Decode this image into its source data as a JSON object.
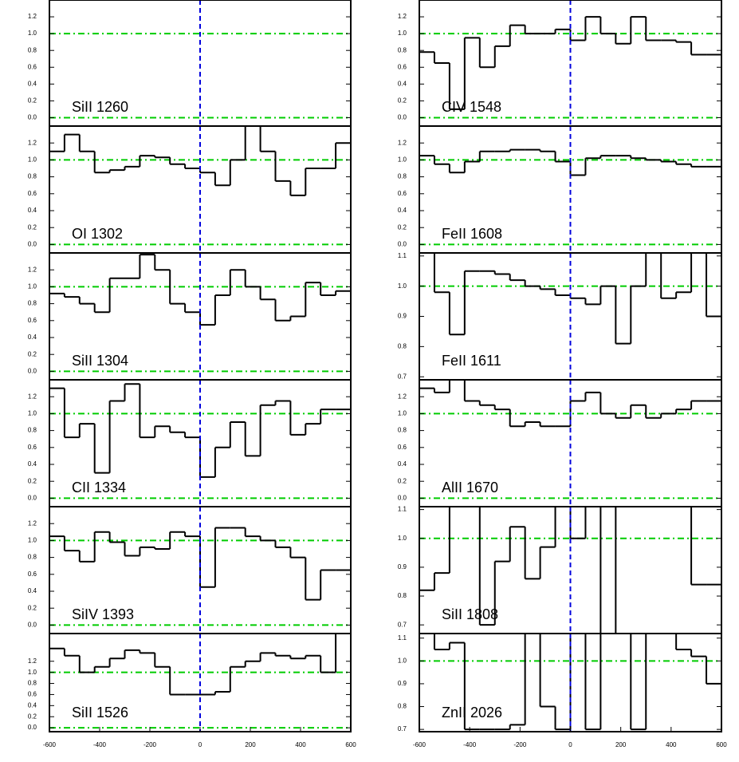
{
  "chart_data": [
    {
      "type": "step",
      "title": "SiII 1260",
      "x": [],
      "values": [],
      "xlim": [
        -600,
        600
      ],
      "ylim": [
        -0.1,
        1.4
      ],
      "yticks": [
        {
          "value": 0,
          "label": "0.0"
        },
        0.2,
        0.4,
        0.6,
        0.8,
        {
          "value": 1,
          "label": "1.0"
        },
        1.2
      ],
      "hlines": [
        0,
        1
      ],
      "vline": 0,
      "color": "#000000"
    },
    {
      "type": "step",
      "title": "OI 1302",
      "x": [
        -570,
        -510,
        -450,
        -390,
        -330,
        -270,
        -210,
        -150,
        -90,
        -30,
        30,
        90,
        150,
        210,
        270,
        330,
        390,
        450,
        510,
        570
      ],
      "values": [
        1.1,
        1.3,
        1.1,
        0.85,
        0.88,
        0.92,
        1.05,
        1.03,
        0.95,
        0.9,
        0.85,
        0.7,
        1.0,
        1.4,
        1.1,
        0.75,
        0.58,
        0.9,
        0.9,
        1.2
      ],
      "xlim": [
        -600,
        600
      ],
      "ylim": [
        -0.1,
        1.4
      ],
      "yticks": [
        {
          "value": 0,
          "label": "0.0"
        },
        0.2,
        0.4,
        0.6,
        0.8,
        {
          "value": 1,
          "label": "1.0"
        },
        1.2
      ],
      "hlines": [
        0,
        1
      ],
      "vline": 0,
      "color": "#000000"
    },
    {
      "type": "step",
      "title": "SiII 1304",
      "x": [
        -570,
        -510,
        -450,
        -390,
        -330,
        -270,
        -210,
        -150,
        -90,
        -30,
        30,
        90,
        150,
        210,
        270,
        330,
        390,
        450,
        510,
        570
      ],
      "values": [
        0.92,
        0.88,
        0.8,
        0.7,
        1.1,
        1.1,
        1.38,
        1.2,
        0.8,
        0.7,
        0.55,
        0.9,
        1.2,
        1.0,
        0.85,
        0.6,
        0.65,
        1.05,
        0.9,
        0.95
      ],
      "xlim": [
        -600,
        600
      ],
      "ylim": [
        -0.1,
        1.4
      ],
      "yticks": [
        {
          "value": 0,
          "label": "0.0"
        },
        0.2,
        0.4,
        0.6,
        0.8,
        {
          "value": 1,
          "label": "1.0"
        },
        1.2
      ],
      "hlines": [
        0,
        1
      ],
      "vline": 0,
      "color": "#000000"
    },
    {
      "type": "step",
      "title": "CII 1334",
      "x": [
        -570,
        -510,
        -450,
        -390,
        -330,
        -270,
        -210,
        -150,
        -90,
        -30,
        30,
        90,
        150,
        210,
        270,
        330,
        390,
        450,
        510,
        570
      ],
      "values": [
        1.3,
        0.72,
        0.88,
        0.3,
        1.15,
        1.35,
        0.72,
        0.85,
        0.78,
        0.72,
        0.25,
        0.6,
        0.9,
        0.5,
        1.1,
        1.15,
        0.75,
        0.88,
        1.05,
        1.05
      ],
      "xlim": [
        -600,
        600
      ],
      "ylim": [
        -0.1,
        1.4
      ],
      "yticks": [
        {
          "value": 0,
          "label": "0.0"
        },
        0.2,
        0.4,
        0.6,
        0.8,
        {
          "value": 1,
          "label": "1.0"
        },
        1.2
      ],
      "hlines": [
        0,
        1
      ],
      "vline": 0,
      "color": "#000000"
    },
    {
      "type": "step",
      "title": "SiIV 1393",
      "x": [
        -570,
        -510,
        -450,
        -390,
        -330,
        -270,
        -210,
        -150,
        -90,
        -30,
        30,
        90,
        150,
        210,
        270,
        330,
        390,
        450,
        510,
        570
      ],
      "values": [
        1.05,
        0.88,
        0.75,
        1.1,
        0.98,
        0.82,
        0.92,
        0.9,
        1.1,
        1.05,
        0.45,
        1.15,
        1.15,
        1.05,
        1.0,
        0.92,
        0.8,
        0.3,
        0.65,
        0.65
      ],
      "xlim": [
        -600,
        600
      ],
      "ylim": [
        -0.1,
        1.4
      ],
      "yticks": [
        {
          "value": 0,
          "label": "0.0"
        },
        0.2,
        0.4,
        0.6,
        0.8,
        {
          "value": 1,
          "label": "1.0"
        },
        1.2
      ],
      "hlines": [
        0,
        1
      ],
      "vline": 0,
      "color": "#000000"
    },
    {
      "type": "step",
      "title": "SiII 1526",
      "x": [
        -570,
        -510,
        -450,
        -390,
        -330,
        -270,
        -210,
        -150,
        -90,
        -30,
        30,
        90,
        150,
        210,
        270,
        330,
        390,
        450,
        510,
        570
      ],
      "values": [
        1.43,
        1.3,
        1.0,
        1.1,
        1.25,
        1.4,
        1.35,
        1.1,
        0.6,
        0.6,
        0.6,
        0.65,
        1.1,
        1.2,
        1.35,
        1.3,
        1.25,
        1.3,
        1.0,
        1.7
      ],
      "xlim": [
        -600,
        600
      ],
      "ylim": [
        -0.07,
        1.7
      ],
      "yticks": [
        {
          "value": 0,
          "label": "0.0"
        },
        0.2,
        0.4,
        0.6,
        0.8,
        {
          "value": 1,
          "label": "1.0"
        },
        1.2
      ],
      "xticks": [
        -600,
        -400,
        -200,
        0,
        200,
        400,
        600
      ],
      "hlines": [
        0,
        1
      ],
      "vline": 0,
      "color": "#000000"
    },
    {
      "type": "step",
      "title": "CIV 1548",
      "x": [
        -570,
        -510,
        -450,
        -390,
        -330,
        -270,
        -210,
        -150,
        -90,
        -30,
        30,
        90,
        150,
        210,
        270,
        330,
        390,
        450,
        510,
        570
      ],
      "values": [
        0.78,
        0.65,
        0.1,
        0.95,
        0.6,
        0.85,
        1.1,
        1.0,
        1.0,
        1.05,
        0.92,
        1.2,
        1.0,
        0.88,
        1.2,
        0.92,
        0.92,
        0.9,
        0.75,
        0.75
      ],
      "xlim": [
        -600,
        600
      ],
      "ylim": [
        -0.1,
        1.4
      ],
      "yticks": [
        {
          "value": 0,
          "label": "0.0"
        },
        0.2,
        0.4,
        0.6,
        0.8,
        {
          "value": 1,
          "label": "1.0"
        },
        1.2
      ],
      "hlines": [
        0,
        1
      ],
      "vline": 0,
      "color": "#000000"
    },
    {
      "type": "step",
      "title": "FeII 1608",
      "x": [
        -570,
        -510,
        -450,
        -390,
        -330,
        -270,
        -210,
        -150,
        -90,
        -30,
        30,
        90,
        150,
        210,
        270,
        330,
        390,
        450,
        510,
        570
      ],
      "values": [
        1.05,
        0.95,
        0.85,
        0.98,
        1.1,
        1.1,
        1.12,
        1.12,
        1.1,
        0.98,
        0.82,
        1.02,
        1.05,
        1.05,
        1.02,
        1.0,
        0.98,
        0.95,
        0.92,
        0.92
      ],
      "xlim": [
        -600,
        600
      ],
      "ylim": [
        -0.1,
        1.4
      ],
      "yticks": [
        {
          "value": 0,
          "label": "0.0"
        },
        0.2,
        0.4,
        0.6,
        0.8,
        {
          "value": 1,
          "label": "1.0"
        },
        1.2
      ],
      "hlines": [
        0,
        1
      ],
      "vline": 0,
      "color": "#000000"
    },
    {
      "type": "step",
      "title": "FeII 1611",
      "x": [
        -570,
        -510,
        -450,
        -390,
        -330,
        -270,
        -210,
        -150,
        -90,
        -30,
        30,
        90,
        150,
        210,
        270,
        330,
        390,
        450,
        510,
        570
      ],
      "values": [
        1.11,
        0.98,
        0.84,
        1.05,
        1.05,
        1.04,
        1.02,
        1.0,
        0.99,
        0.97,
        0.96,
        0.94,
        1.0,
        0.81,
        1.0,
        1.11,
        0.96,
        0.98,
        1.11,
        0.9
      ],
      "xlim": [
        -600,
        600
      ],
      "ylim": [
        0.69,
        1.11
      ],
      "yticks": [
        0.7,
        0.8,
        0.9,
        {
          "value": 1,
          "label": "1.0"
        },
        1.1
      ],
      "hlines": [
        1
      ],
      "vline": 0,
      "color": "#000000"
    },
    {
      "type": "step",
      "title": "AlII 1670",
      "x": [
        -570,
        -510,
        -450,
        -390,
        -330,
        -270,
        -210,
        -150,
        -90,
        -30,
        30,
        90,
        150,
        210,
        270,
        330,
        390,
        450,
        510,
        570
      ],
      "values": [
        1.3,
        1.25,
        1.4,
        1.15,
        1.1,
        1.05,
        0.85,
        0.9,
        0.85,
        0.85,
        1.15,
        1.25,
        1.0,
        0.95,
        1.1,
        0.95,
        1.0,
        1.05,
        1.15,
        1.15
      ],
      "xlim": [
        -600,
        600
      ],
      "ylim": [
        -0.1,
        1.4
      ],
      "yticks": [
        {
          "value": 0,
          "label": "0.0"
        },
        0.2,
        0.4,
        0.6,
        0.8,
        {
          "value": 1,
          "label": "1.0"
        },
        1.2
      ],
      "hlines": [
        0,
        1
      ],
      "vline": 0,
      "color": "#000000"
    },
    {
      "type": "step",
      "title": "SiII 1808",
      "x": [
        -570,
        -510,
        -450,
        -390,
        -330,
        -270,
        -210,
        -150,
        -90,
        -30,
        30,
        90,
        150,
        210,
        270,
        330,
        390,
        450,
        510,
        570
      ],
      "values": [
        0.82,
        0.88,
        1.11,
        1.11,
        0.7,
        0.92,
        1.04,
        0.86,
        0.97,
        1.11,
        1.0,
        1.11,
        0.67,
        1.11,
        1.11,
        1.11,
        1.11,
        1.11,
        0.84,
        0.84
      ],
      "xlim": [
        -600,
        600
      ],
      "ylim": [
        0.67,
        1.11
      ],
      "yticks": [
        0.7,
        0.8,
        0.9,
        {
          "value": 1,
          "label": "1.0"
        },
        1.1
      ],
      "hlines": [
        1
      ],
      "vline": 0,
      "color": "#000000"
    },
    {
      "type": "step",
      "title": "ZnII 2026",
      "x": [
        -570,
        -510,
        -450,
        -390,
        -330,
        -270,
        -210,
        -150,
        -90,
        -30,
        30,
        90,
        150,
        210,
        270,
        330,
        390,
        450,
        510,
        570
      ],
      "values": [
        1.12,
        1.05,
        1.08,
        0.7,
        0.7,
        0.7,
        0.72,
        1.12,
        0.8,
        0.7,
        1.12,
        0.7,
        1.12,
        1.12,
        0.7,
        1.12,
        1.12,
        1.05,
        1.02,
        0.9
      ],
      "xlim": [
        -600,
        600
      ],
      "ylim": [
        0.69,
        1.12
      ],
      "yticks": [
        0.7,
        0.8,
        0.9,
        {
          "value": 1,
          "label": "1.0"
        },
        1.1
      ],
      "xticks": [
        -600,
        -400,
        -200,
        0,
        200,
        400,
        600
      ],
      "hlines": [
        1
      ],
      "vline": 0,
      "color": "#000000"
    }
  ]
}
